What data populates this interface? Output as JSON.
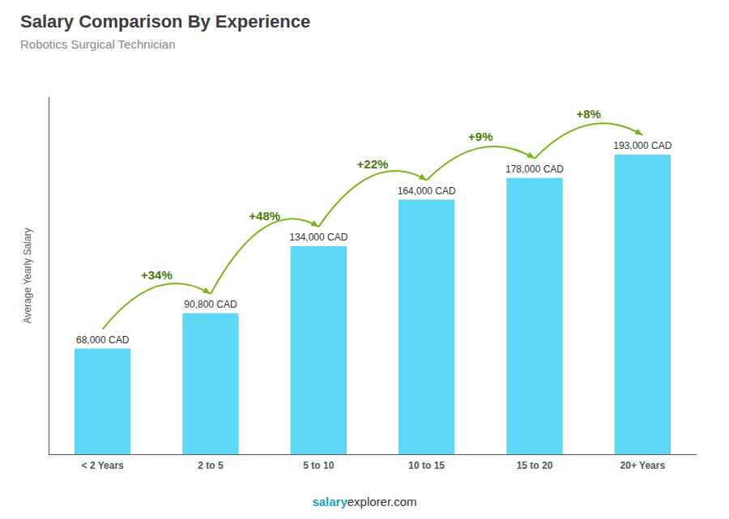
{
  "chart_data": {
    "type": "bar",
    "title": "Salary Comparison By Experience",
    "subtitle": "Robotics Surgical Technician",
    "ylabel": "Average Yearly Salary",
    "categories": [
      "< 2 Years",
      "2 to 5",
      "5 to 10",
      "10 to 15",
      "15 to 20",
      "20+ Years"
    ],
    "values": [
      68000,
      90800,
      134000,
      164000,
      178000,
      193000
    ],
    "value_labels": [
      "68,000 CAD",
      "90,800 CAD",
      "134,000 CAD",
      "164,000 CAD",
      "178,000 CAD",
      "193,000 CAD"
    ],
    "data_labels": true,
    "annotations": [
      "+34%",
      "+48%",
      "+22%",
      "+9%",
      "+8%"
    ],
    "footer": [
      "salary",
      "explorer.com"
    ],
    "color": "#5dd8f8",
    "ylim": [
      0,
      230000
    ],
    "tick_labels": "x",
    "grid": false
  }
}
